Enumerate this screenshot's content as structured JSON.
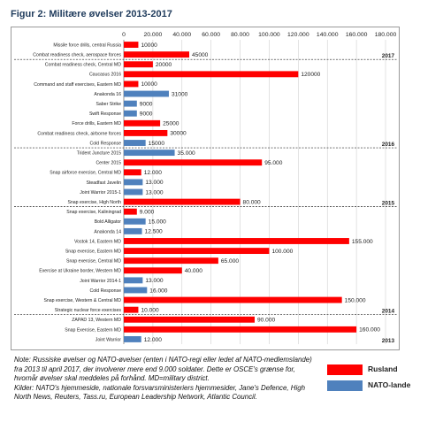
{
  "title": "Figur 2: Militære øvelser 2013-2017",
  "notes": [
    "Note: Russiske øvelser og NATO-øvelser (enten i NATO-regi eller ledet af NATO-medlemslande) fra 2013 til april 2017, der involverer mere end 9.000 soldater. Dette er OSCE's grænse for, hvornår øvelser skal meddeles på forhånd. MD=military district.",
    "Kilder: NATO's hjemmeside, nationale forsvarsministeriers hjemmesider, Jane's Defence, High North News, Reuters, Tass.ru, European Leadership Network, Atlantic Council."
  ],
  "colors": {
    "russia": "#ff0000",
    "nato": "#4f81bd"
  },
  "chart_data": {
    "type": "bar",
    "orientation": "horizontal",
    "xlim": [
      0,
      180000
    ],
    "xticks": [
      "0",
      "20.000",
      "40.000",
      "60.000",
      "80.000",
      "100.000",
      "120.000",
      "140.000",
      "160.000",
      "180.000"
    ],
    "series": [
      {
        "name": "Rusland",
        "color": "#ff0000"
      },
      {
        "name": "NATO-lande",
        "color": "#4f81bd"
      }
    ],
    "bars": [
      {
        "label": "Missile force drills, central Russia",
        "value": 10000,
        "value_label": "10000",
        "series": "Rusland"
      },
      {
        "label": "Combat readiness check, aerospace forces",
        "value": 45000,
        "value_label": "45000",
        "series": "Rusland"
      },
      {
        "label": "Combat readiness check, Central MD",
        "value": 20000,
        "value_label": "20000",
        "series": "Rusland"
      },
      {
        "label": "Caucasus 2016",
        "value": 120000,
        "value_label": "120000",
        "series": "Rusland"
      },
      {
        "label": "Command and staff exercises, Eastern MD",
        "value": 10000,
        "value_label": "10000",
        "series": "Rusland"
      },
      {
        "label": "Anakonda 16",
        "value": 31000,
        "value_label": "31000",
        "series": "NATO-lande"
      },
      {
        "label": "Saber Strike",
        "value": 9000,
        "value_label": "9000",
        "series": "NATO-lande"
      },
      {
        "label": "Swift Response",
        "value": 9000,
        "value_label": "9000",
        "series": "NATO-lande"
      },
      {
        "label": "Force drills, Eastern MD",
        "value": 25000,
        "value_label": "25000",
        "series": "Rusland"
      },
      {
        "label": "Combat readiness check, airborne forces",
        "value": 30000,
        "value_label": "30000",
        "series": "Rusland"
      },
      {
        "label": "Cold Response",
        "value": 15000,
        "value_label": "15000",
        "series": "NATO-lande"
      },
      {
        "label": "Trident Juncture 2015",
        "value": 35000,
        "value_label": "35.000",
        "series": "NATO-lande"
      },
      {
        "label": "Center 2015",
        "value": 95000,
        "value_label": "95.000",
        "series": "Rusland"
      },
      {
        "label": "Snap airforce exercise, Central MD",
        "value": 12000,
        "value_label": "12.000",
        "series": "Rusland"
      },
      {
        "label": "Steadfast Javelin",
        "value": 13000,
        "value_label": "13.000",
        "series": "NATO-lande"
      },
      {
        "label": "Joint Warrior 2015-1",
        "value": 13000,
        "value_label": "13.000",
        "series": "NATO-lande"
      },
      {
        "label": "Snap exercise, High North",
        "value": 80000,
        "value_label": "80.000",
        "series": "Rusland"
      },
      {
        "label": "Snap exercise, Kaliningrad",
        "value": 9000,
        "value_label": "9.000",
        "series": "Rusland"
      },
      {
        "label": "Bold Alligator",
        "value": 15000,
        "value_label": "15.000",
        "series": "NATO-lande"
      },
      {
        "label": "Anakonda 14",
        "value": 12500,
        "value_label": "12.500",
        "series": "NATO-lande"
      },
      {
        "label": "Vostok 14, Eastern MD",
        "value": 155000,
        "value_label": "155.000",
        "series": "Rusland"
      },
      {
        "label": "Snap exercise, Eastern MD",
        "value": 100000,
        "value_label": "100.000",
        "series": "Rusland"
      },
      {
        "label": "Snap exercise, Central MD",
        "value": 65000,
        "value_label": "65.000",
        "series": "Rusland"
      },
      {
        "label": "Exercise at Ukraine border, Western MD",
        "value": 40000,
        "value_label": "40.000",
        "series": "Rusland"
      },
      {
        "label": "Joint Warrior 2014-1",
        "value": 13000,
        "value_label": "13.000",
        "series": "NATO-lande"
      },
      {
        "label": "Cold Response",
        "value": 16000,
        "value_label": "16.000",
        "series": "NATO-lande"
      },
      {
        "label": "Snap exercise, Western & Central MD",
        "value": 150000,
        "value_label": "150.000",
        "series": "Rusland"
      },
      {
        "label": "Strategic nuclear force exercises",
        "value": 10000,
        "value_label": "10.000",
        "series": "Rusland"
      },
      {
        "label": "ZAPAD 13, Western MD",
        "value": 90000,
        "value_label": "90.000",
        "series": "Rusland"
      },
      {
        "label": "Snap Exercise, Eastern MD",
        "value": 160000,
        "value_label": "160.000",
        "series": "Rusland"
      },
      {
        "label": "Joint Warrior",
        "value": 12000,
        "value_label": "12.000",
        "series": "NATO-lande"
      }
    ],
    "year_groups": [
      {
        "year": "2017",
        "first": 0,
        "last": 1
      },
      {
        "year": "2016",
        "first": 2,
        "last": 10
      },
      {
        "year": "2015",
        "first": 11,
        "last": 16
      },
      {
        "year": "2014",
        "first": 17,
        "last": 27
      },
      {
        "year": "2013",
        "first": 28,
        "last": 30
      }
    ]
  }
}
